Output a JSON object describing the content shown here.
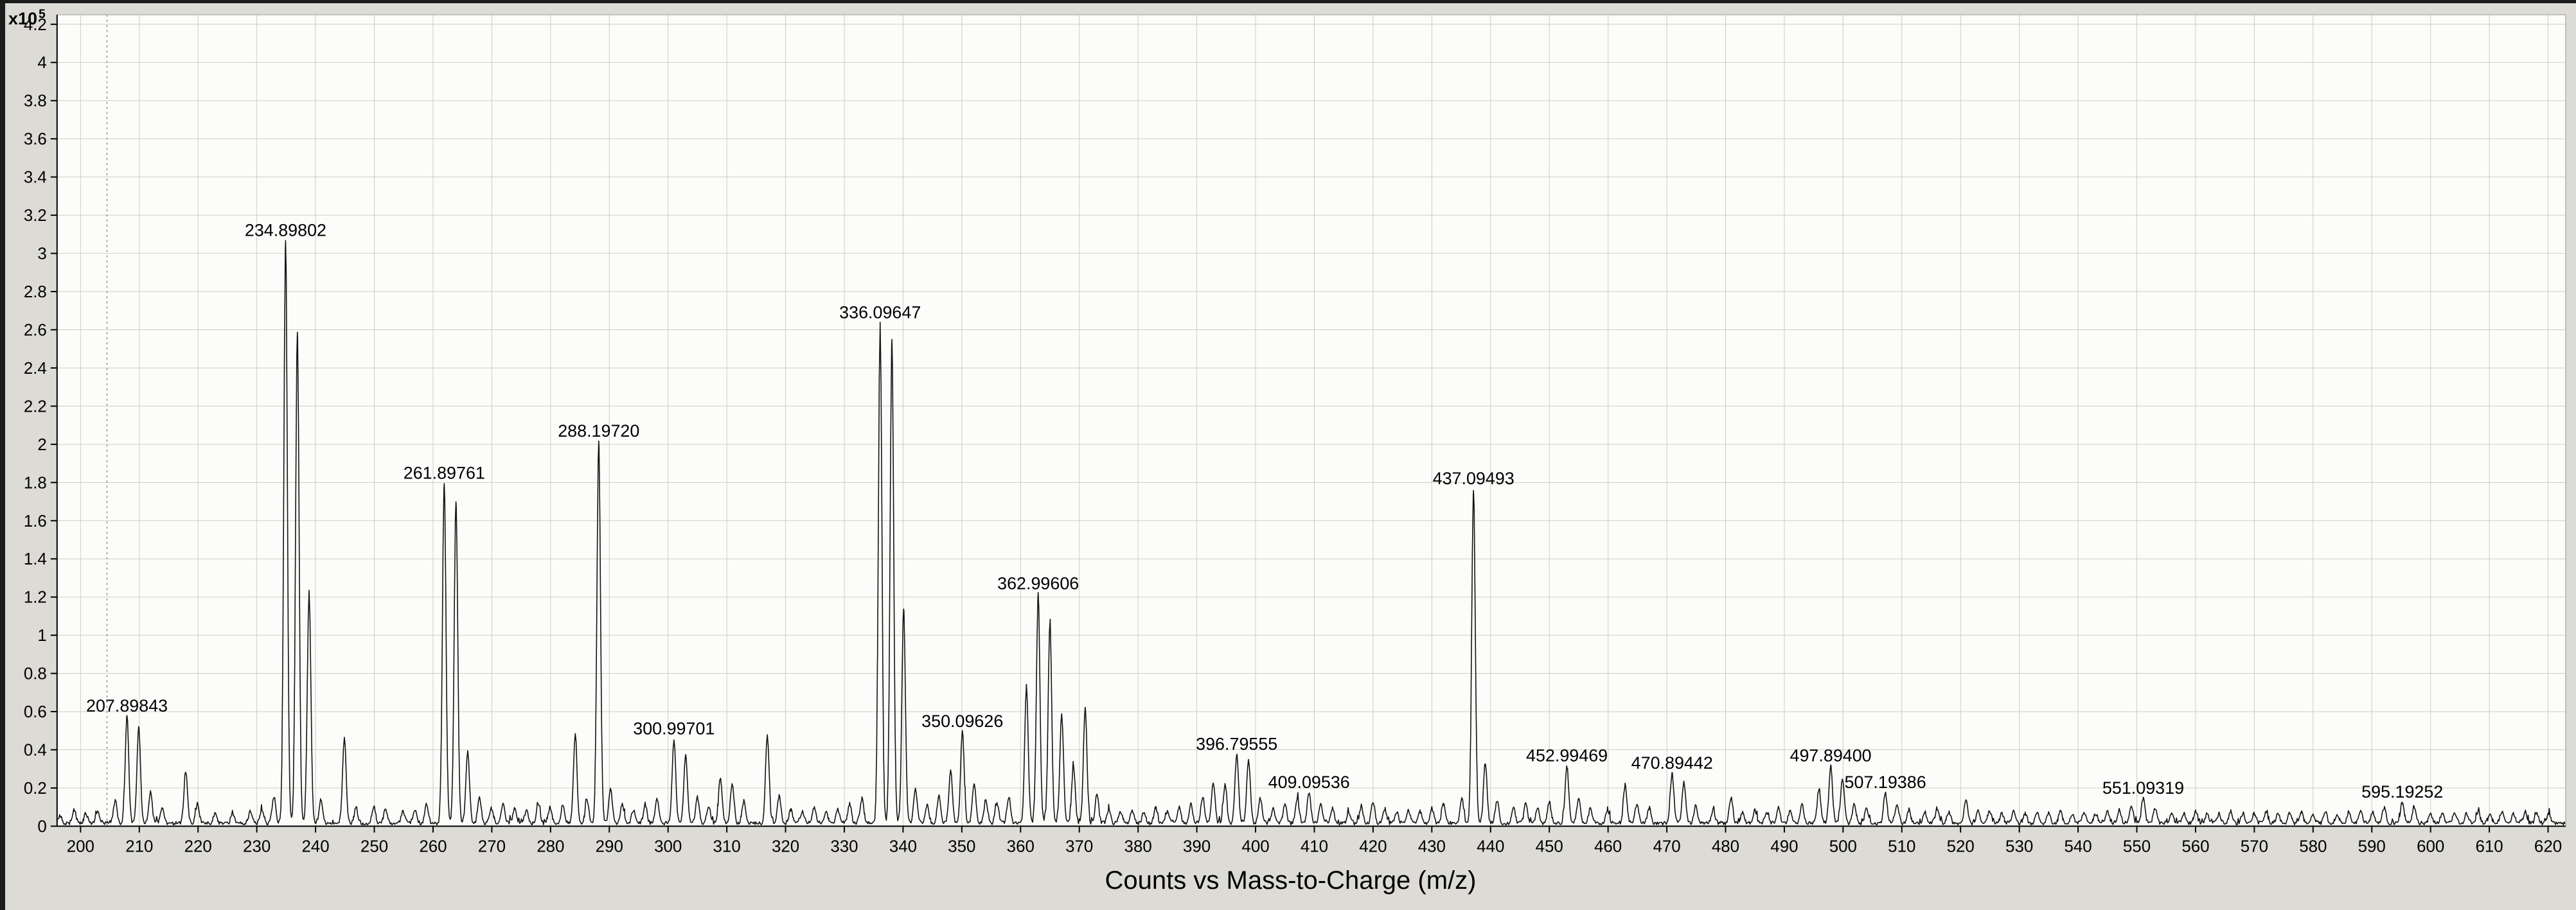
{
  "chart_data": {
    "type": "line",
    "title": "",
    "xlabel": "Counts vs Mass-to-Charge (m/z)",
    "ylabel": "x10^5",
    "y_unit_base": "x10",
    "y_unit_exp": "5",
    "xlim": [
      196,
      623
    ],
    "ylim": [
      0,
      4.25
    ],
    "grid": true,
    "legend": false,
    "cursor_line_x": 204.5,
    "x_ticks": [
      200,
      210,
      220,
      230,
      240,
      250,
      260,
      270,
      280,
      290,
      300,
      310,
      320,
      330,
      340,
      350,
      360,
      370,
      380,
      390,
      400,
      410,
      420,
      430,
      440,
      450,
      460,
      470,
      480,
      490,
      500,
      510,
      520,
      530,
      540,
      550,
      560,
      570,
      580,
      590,
      600,
      610,
      620
    ],
    "y_ticks": [
      "0",
      "0.2",
      "0.4",
      "0.6",
      "0.8",
      "1",
      "1.2",
      "1.4",
      "1.6",
      "1.8",
      "2",
      "2.2",
      "2.4",
      "2.6",
      "2.8",
      "3",
      "3.2",
      "3.4",
      "3.6",
      "3.8",
      "4",
      "4.2"
    ],
    "labeled_peaks": [
      {
        "mz": 207.89843,
        "intensity": 0.56,
        "label": "207.89843"
      },
      {
        "mz": 234.89802,
        "intensity": 3.05,
        "label": "234.89802"
      },
      {
        "mz": 261.89761,
        "intensity": 1.78,
        "label": "261.89761"
      },
      {
        "mz": 288.1972,
        "intensity": 2.0,
        "label": "288.19720"
      },
      {
        "mz": 300.99701,
        "intensity": 0.44,
        "label": "300.99701"
      },
      {
        "mz": 336.09647,
        "intensity": 2.62,
        "label": "336.09647"
      },
      {
        "mz": 350.09626,
        "intensity": 0.48,
        "label": "350.09626"
      },
      {
        "mz": 362.99606,
        "intensity": 1.2,
        "label": "362.99606"
      },
      {
        "mz": 396.79555,
        "intensity": 0.36,
        "label": "396.79555"
      },
      {
        "mz": 409.09536,
        "intensity": 0.16,
        "label": "409.09536"
      },
      {
        "mz": 437.09493,
        "intensity": 1.75,
        "label": "437.09493"
      },
      {
        "mz": 452.99469,
        "intensity": 0.3,
        "label": "452.99469"
      },
      {
        "mz": 470.89442,
        "intensity": 0.26,
        "label": "470.89442"
      },
      {
        "mz": 497.894,
        "intensity": 0.3,
        "label": "497.89400"
      },
      {
        "mz": 507.19386,
        "intensity": 0.16,
        "label": "507.19386"
      },
      {
        "mz": 551.09319,
        "intensity": 0.13,
        "label": "551.09319"
      },
      {
        "mz": 595.19252,
        "intensity": 0.11,
        "label": "595.19252"
      }
    ],
    "minor_peaks": [
      [
        196.5,
        0.04
      ],
      [
        198.9,
        0.07
      ],
      [
        200.9,
        0.05
      ],
      [
        202.9,
        0.06
      ],
      [
        205.9,
        0.12
      ],
      [
        209.9,
        0.5
      ],
      [
        211.9,
        0.16
      ],
      [
        213.9,
        0.08
      ],
      [
        217.9,
        0.27
      ],
      [
        219.9,
        0.1
      ],
      [
        222.9,
        0.05
      ],
      [
        225.9,
        0.05
      ],
      [
        228.9,
        0.06
      ],
      [
        230.9,
        0.07
      ],
      [
        232.9,
        0.14
      ],
      [
        236.9,
        2.58
      ],
      [
        238.9,
        1.22
      ],
      [
        240.9,
        0.12
      ],
      [
        244.9,
        0.45
      ],
      [
        246.9,
        0.08
      ],
      [
        249.9,
        0.09
      ],
      [
        251.9,
        0.07
      ],
      [
        254.9,
        0.06
      ],
      [
        256.9,
        0.07
      ],
      [
        258.9,
        0.1
      ],
      [
        263.9,
        1.68
      ],
      [
        265.9,
        0.38
      ],
      [
        267.9,
        0.13
      ],
      [
        269.9,
        0.08
      ],
      [
        271.9,
        0.1
      ],
      [
        273.9,
        0.08
      ],
      [
        275.9,
        0.07
      ],
      [
        277.9,
        0.1
      ],
      [
        279.9,
        0.08
      ],
      [
        282.1,
        0.1
      ],
      [
        284.2,
        0.46
      ],
      [
        286.2,
        0.12
      ],
      [
        290.2,
        0.18
      ],
      [
        292.2,
        0.1
      ],
      [
        294.1,
        0.07
      ],
      [
        296.1,
        0.1
      ],
      [
        298.1,
        0.13
      ],
      [
        303.0,
        0.36
      ],
      [
        305.0,
        0.14
      ],
      [
        306.9,
        0.09
      ],
      [
        308.9,
        0.24
      ],
      [
        310.9,
        0.21
      ],
      [
        312.9,
        0.12
      ],
      [
        316.9,
        0.46
      ],
      [
        318.9,
        0.14
      ],
      [
        320.9,
        0.07
      ],
      [
        322.9,
        0.06
      ],
      [
        324.9,
        0.08
      ],
      [
        326.9,
        0.06
      ],
      [
        328.9,
        0.07
      ],
      [
        330.9,
        0.1
      ],
      [
        333.0,
        0.13
      ],
      [
        338.1,
        2.53
      ],
      [
        340.1,
        1.12
      ],
      [
        342.1,
        0.18
      ],
      [
        344.1,
        0.1
      ],
      [
        346.1,
        0.14
      ],
      [
        348.1,
        0.28
      ],
      [
        352.1,
        0.2
      ],
      [
        354.1,
        0.12
      ],
      [
        356.0,
        0.1
      ],
      [
        358.0,
        0.14
      ],
      [
        361.0,
        0.72
      ],
      [
        365.0,
        1.05
      ],
      [
        367.0,
        0.58
      ],
      [
        369.0,
        0.3
      ],
      [
        371.0,
        0.6
      ],
      [
        373.0,
        0.15
      ],
      [
        375.0,
        0.07
      ],
      [
        377.0,
        0.06
      ],
      [
        379.0,
        0.07
      ],
      [
        381.0,
        0.06
      ],
      [
        383.0,
        0.08
      ],
      [
        385.0,
        0.06
      ],
      [
        387.0,
        0.08
      ],
      [
        389.0,
        0.1
      ],
      [
        391.0,
        0.14
      ],
      [
        392.8,
        0.22
      ],
      [
        394.8,
        0.2
      ],
      [
        398.8,
        0.34
      ],
      [
        400.8,
        0.13
      ],
      [
        403.0,
        0.08
      ],
      [
        405.0,
        0.1
      ],
      [
        407.1,
        0.13
      ],
      [
        411.1,
        0.1
      ],
      [
        413.1,
        0.08
      ],
      [
        415.9,
        0.06
      ],
      [
        418.0,
        0.08
      ],
      [
        420.0,
        0.11
      ],
      [
        422.0,
        0.07
      ],
      [
        424.0,
        0.06
      ],
      [
        426.0,
        0.07
      ],
      [
        428.0,
        0.06
      ],
      [
        430.0,
        0.08
      ],
      [
        432.0,
        0.1
      ],
      [
        435.1,
        0.13
      ],
      [
        439.1,
        0.32
      ],
      [
        441.1,
        0.12
      ],
      [
        443.9,
        0.08
      ],
      [
        446.0,
        0.1
      ],
      [
        448.0,
        0.08
      ],
      [
        450.0,
        0.11
      ],
      [
        455.0,
        0.13
      ],
      [
        457.0,
        0.08
      ],
      [
        459.9,
        0.07
      ],
      [
        462.9,
        0.2
      ],
      [
        464.9,
        0.1
      ],
      [
        467.0,
        0.08
      ],
      [
        472.9,
        0.21
      ],
      [
        474.9,
        0.09
      ],
      [
        477.9,
        0.07
      ],
      [
        480.9,
        0.13
      ],
      [
        482.9,
        0.06
      ],
      [
        485.0,
        0.07
      ],
      [
        487.0,
        0.06
      ],
      [
        489.0,
        0.08
      ],
      [
        491.0,
        0.07
      ],
      [
        493.0,
        0.1
      ],
      [
        495.9,
        0.18
      ],
      [
        499.9,
        0.24
      ],
      [
        501.9,
        0.1
      ],
      [
        504.0,
        0.08
      ],
      [
        509.2,
        0.1
      ],
      [
        511.2,
        0.07
      ],
      [
        513.9,
        0.06
      ],
      [
        516.0,
        0.07
      ],
      [
        518.0,
        0.06
      ],
      [
        520.9,
        0.12
      ],
      [
        523.0,
        0.07
      ],
      [
        525.0,
        0.06
      ],
      [
        527.0,
        0.05
      ],
      [
        529.0,
        0.06
      ],
      [
        531.0,
        0.05
      ],
      [
        533.0,
        0.06
      ],
      [
        535.0,
        0.05
      ],
      [
        537.0,
        0.06
      ],
      [
        539.0,
        0.05
      ],
      [
        541.0,
        0.06
      ],
      [
        543.0,
        0.05
      ],
      [
        545.0,
        0.06
      ],
      [
        547.0,
        0.07
      ],
      [
        549.1,
        0.09
      ],
      [
        553.1,
        0.08
      ],
      [
        555.9,
        0.05
      ],
      [
        558.0,
        0.05
      ],
      [
        560.0,
        0.06
      ],
      [
        562.0,
        0.05
      ],
      [
        564.0,
        0.05
      ],
      [
        566.0,
        0.06
      ],
      [
        568.0,
        0.05
      ],
      [
        570.0,
        0.05
      ],
      [
        572.0,
        0.06
      ],
      [
        574.0,
        0.05
      ],
      [
        576.0,
        0.05
      ],
      [
        578.0,
        0.06
      ],
      [
        580.0,
        0.05
      ],
      [
        582.1,
        0.06
      ],
      [
        584.1,
        0.05
      ],
      [
        586.1,
        0.06
      ],
      [
        588.1,
        0.07
      ],
      [
        590.1,
        0.06
      ],
      [
        592.1,
        0.08
      ],
      [
        597.2,
        0.09
      ],
      [
        600.0,
        0.05
      ],
      [
        602.0,
        0.05
      ],
      [
        604.1,
        0.06
      ],
      [
        606.1,
        0.05
      ],
      [
        608.1,
        0.06
      ],
      [
        610.1,
        0.05
      ],
      [
        612.1,
        0.06
      ],
      [
        614.1,
        0.05
      ],
      [
        616.1,
        0.06
      ],
      [
        618.1,
        0.05
      ],
      [
        620.1,
        0.05
      ]
    ],
    "colors": {
      "trace": "#141414",
      "grid": "#cbcbc7",
      "plot_bg": "#fcfcfa",
      "outer_bg": "#dddbd6",
      "axis": "#000000",
      "cursor": "#8a8a8a"
    }
  }
}
